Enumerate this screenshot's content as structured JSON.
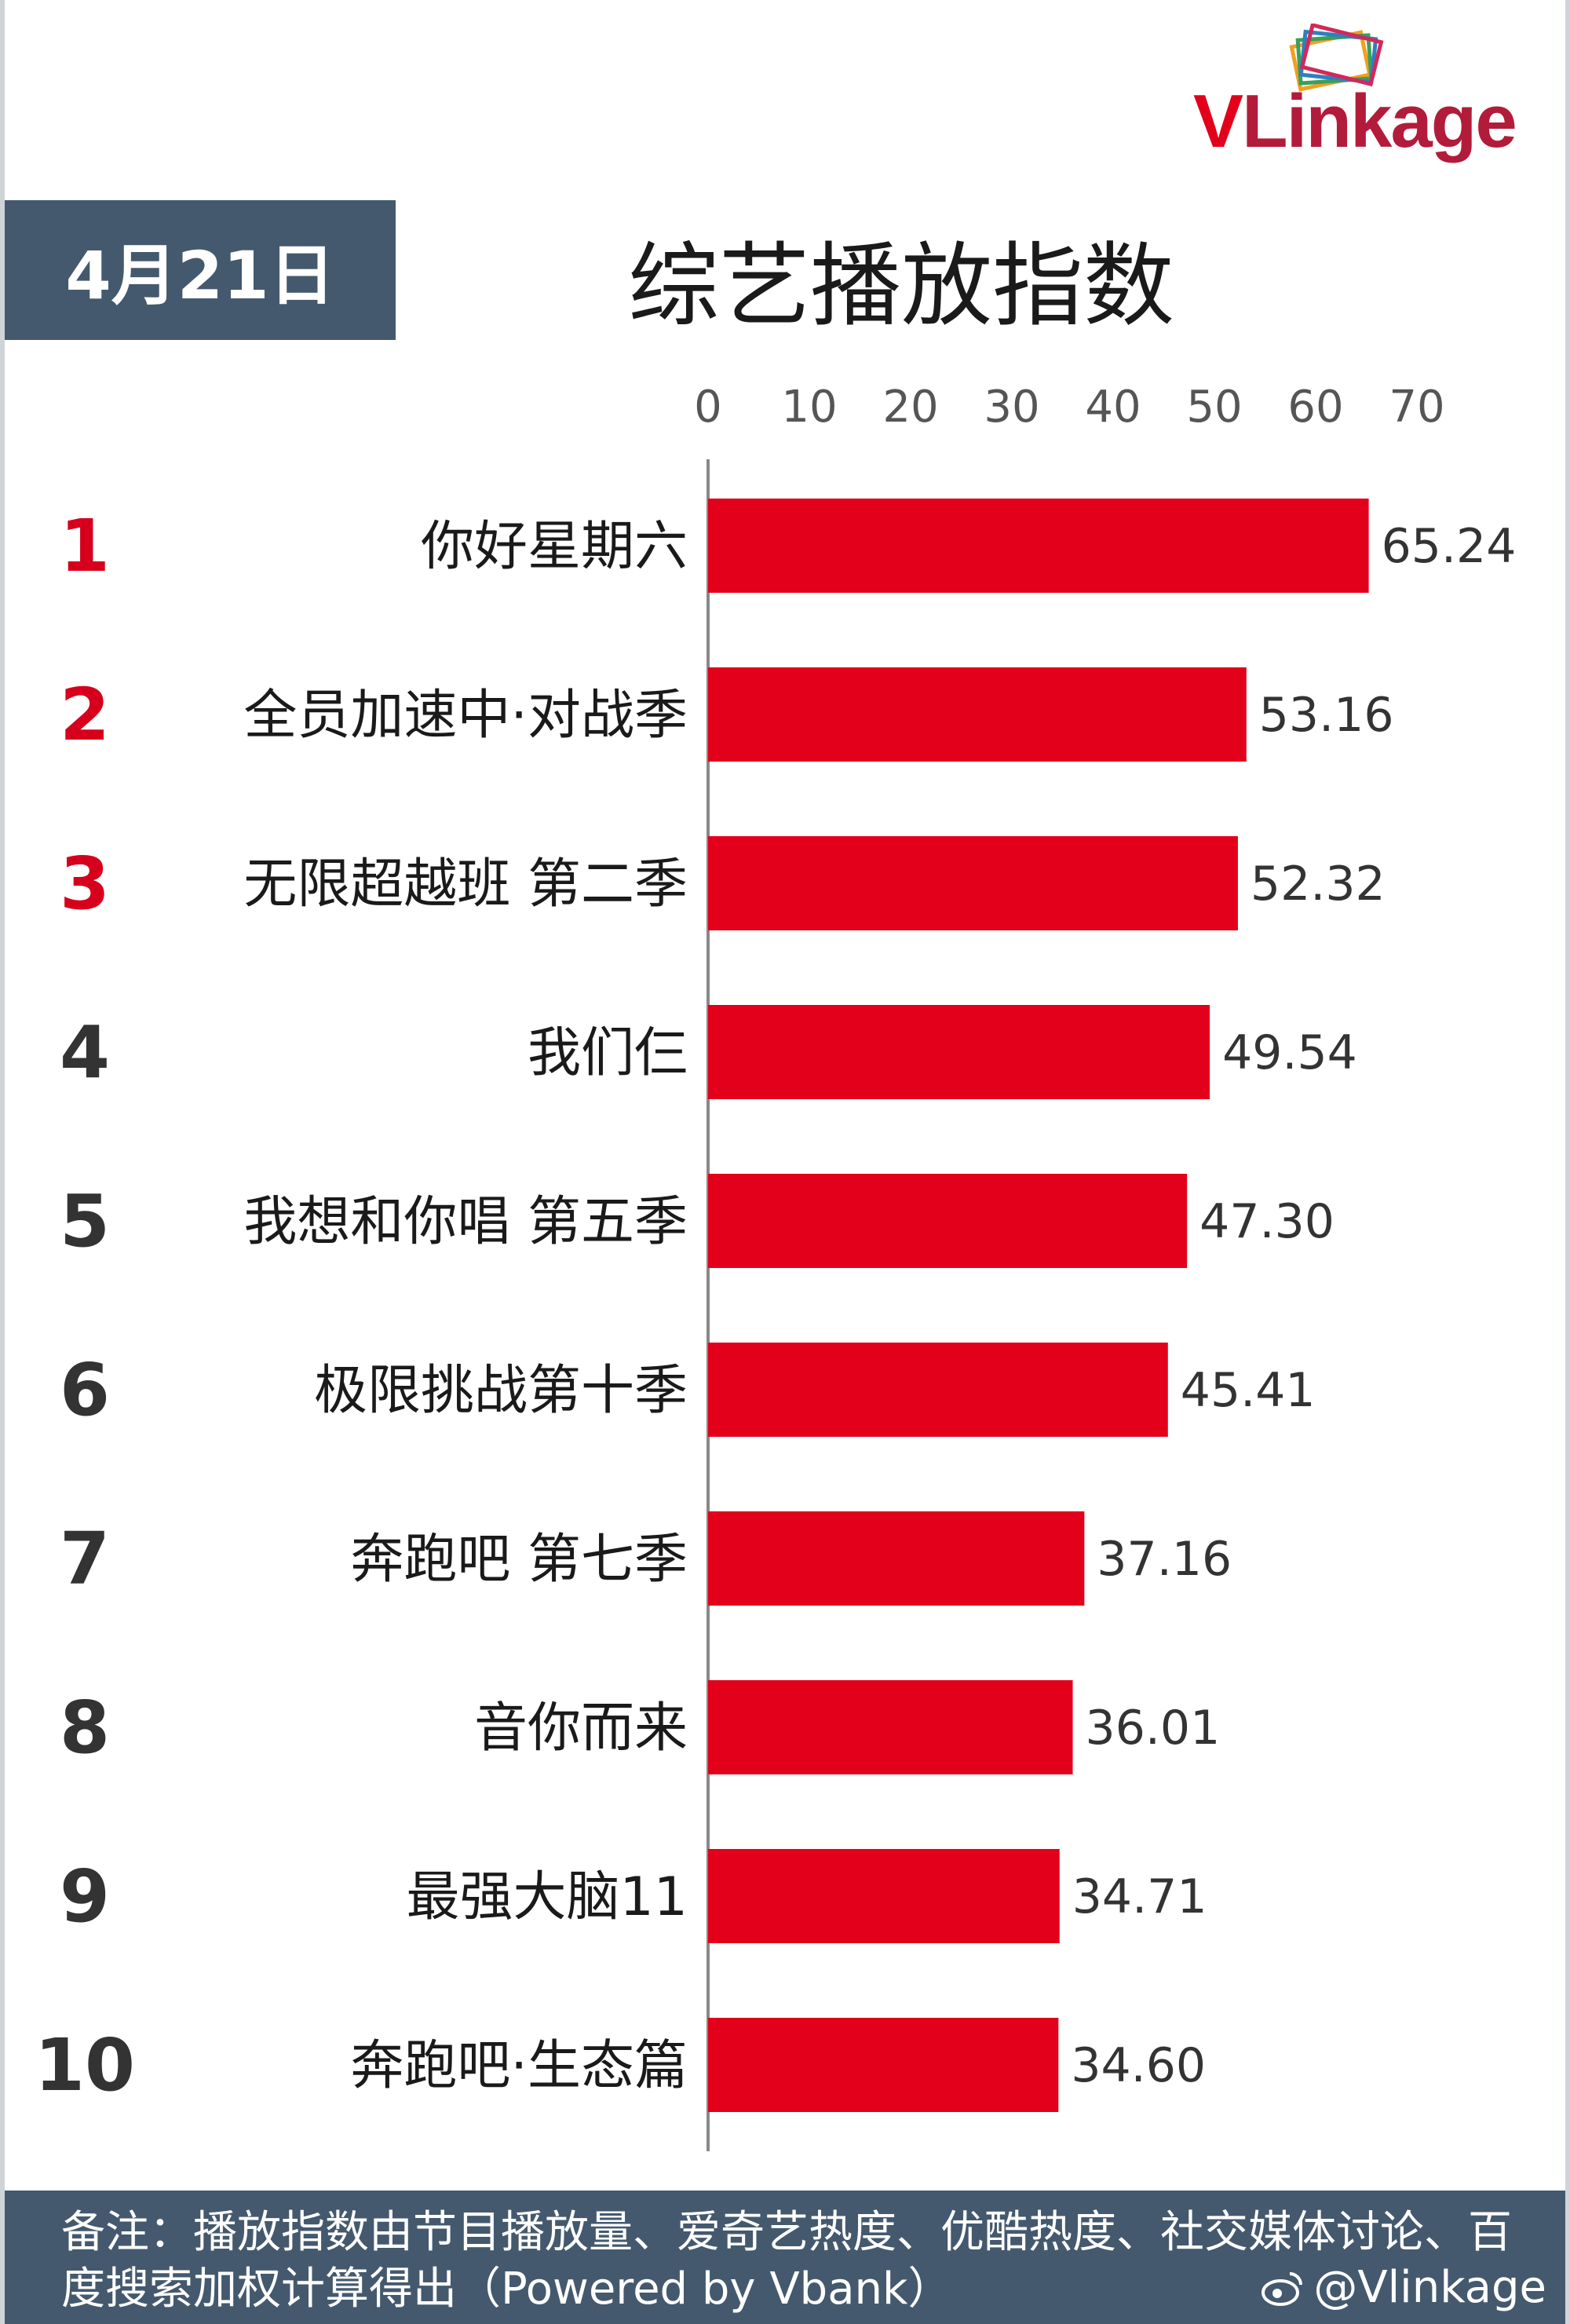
{
  "brand": {
    "logo_text": "VLinkage"
  },
  "date_label": "4月21日",
  "footer": {
    "note": "备注：播放指数由节目播放量、爱奇艺热度、优酷热度、社交媒体讨论、百度搜索加权计算得出（Powered by Vbank）",
    "handle": "@Vlinkage"
  },
  "colors": {
    "bar": "#e2001a",
    "top_rank": "#d6001c",
    "rank": "#333333",
    "badge": "#44596e"
  },
  "chart_data": {
    "type": "bar",
    "orientation": "horizontal",
    "title": "综艺播放指数",
    "xlim": [
      0,
      70
    ],
    "x_ticks": [
      0,
      10,
      20,
      30,
      40,
      50,
      60,
      70
    ],
    "tick_position": "top",
    "grid": false,
    "ranks": [
      "1",
      "2",
      "3",
      "4",
      "5",
      "6",
      "7",
      "8",
      "9",
      "10"
    ],
    "categories": [
      "你好星期六",
      "全员加速中·对战季",
      "无限超越班 第二季",
      "我们仨",
      "我想和你唱 第五季",
      "极限挑战第十季",
      "奔跑吧 第七季",
      "音你而来",
      "最强大脑11",
      "奔跑吧·生态篇"
    ],
    "values": [
      65.24,
      53.16,
      52.32,
      49.54,
      47.3,
      45.41,
      37.16,
      36.01,
      34.71,
      34.6
    ],
    "value_labels": [
      "65.24",
      "53.16",
      "52.32",
      "49.54",
      "47.30",
      "45.41",
      "37.16",
      "36.01",
      "34.71",
      "34.60"
    ]
  }
}
